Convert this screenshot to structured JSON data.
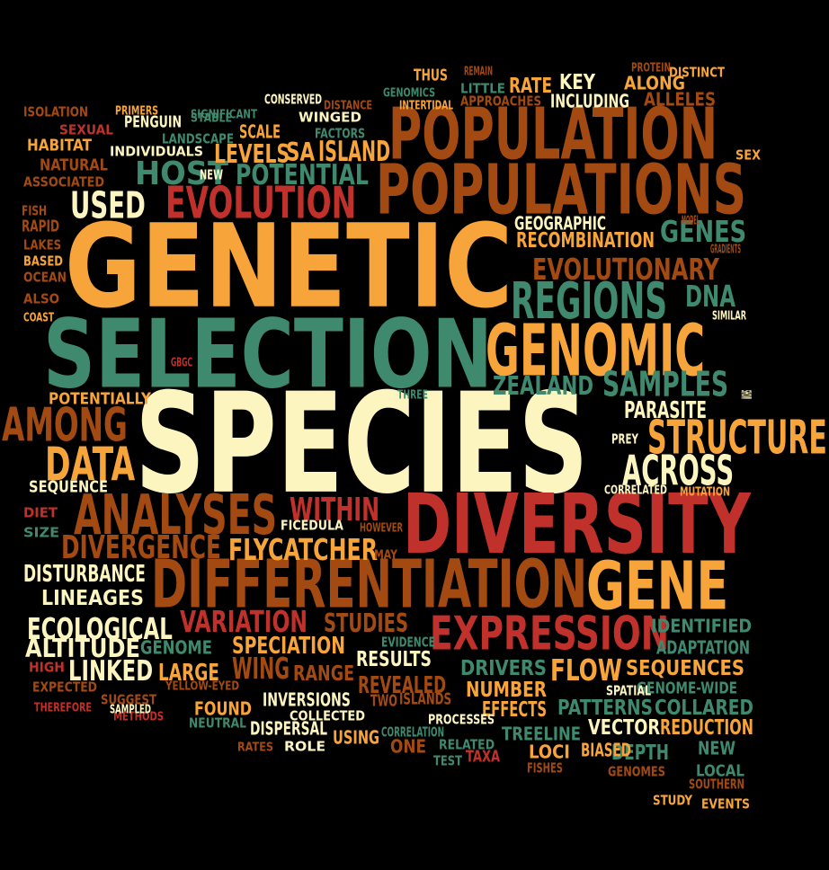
{
  "palette": {
    "cream": "#fdf5c0",
    "orange": "#f7a53a",
    "teal": "#3f8a6e",
    "brown": "#a34a12",
    "red": "#c1312b",
    "background": "#000000"
  },
  "words": [
    {
      "text": "SPECIES",
      "color": "cream"
    },
    {
      "text": "GENETIC",
      "color": "orange"
    },
    {
      "text": "SELECTION",
      "color": "teal"
    },
    {
      "text": "POPULATION",
      "color": "brown"
    },
    {
      "text": "POPULATIONS",
      "color": "brown"
    },
    {
      "text": "DIVERSITY",
      "color": "red"
    },
    {
      "text": "DIFFERENTIATION",
      "color": "brown"
    },
    {
      "text": "GENOMIC",
      "color": "orange"
    },
    {
      "text": "GENE",
      "color": "orange"
    },
    {
      "text": "STRUCTURE",
      "color": "orange"
    },
    {
      "text": "ANALYSES",
      "color": "brown"
    },
    {
      "text": "EXPRESSION",
      "color": "red"
    },
    {
      "text": "AMONG",
      "color": "brown"
    },
    {
      "text": "REGIONS",
      "color": "teal"
    },
    {
      "text": "EVOLUTION",
      "color": "red"
    },
    {
      "text": "ACROSS",
      "color": "cream"
    },
    {
      "text": "DATA",
      "color": "orange"
    },
    {
      "text": "EVOLUTIONARY",
      "color": "brown"
    },
    {
      "text": "SAMPLES",
      "color": "teal"
    },
    {
      "text": "USED",
      "color": "cream"
    },
    {
      "text": "FLYCATCHER",
      "color": "orange"
    },
    {
      "text": "DIVERGENCE",
      "color": "brown"
    },
    {
      "text": "VARIATION",
      "color": "red"
    },
    {
      "text": "WITHIN",
      "color": "red"
    },
    {
      "text": "FLOW",
      "color": "orange"
    },
    {
      "text": "GENES",
      "color": "teal"
    },
    {
      "text": "ZEALAND",
      "color": "teal"
    },
    {
      "text": "DNA",
      "color": "teal"
    },
    {
      "text": "POTENTIAL",
      "color": "teal"
    },
    {
      "text": "HOST",
      "color": "teal"
    },
    {
      "text": "ISLAND",
      "color": "orange"
    },
    {
      "text": "LEVELS",
      "color": "orange"
    },
    {
      "text": "SA",
      "color": "orange"
    },
    {
      "text": "RECOMBINATION",
      "color": "orange"
    },
    {
      "text": "GEOGRAPHIC",
      "color": "cream"
    },
    {
      "text": "PARASITE",
      "color": "cream"
    },
    {
      "text": "ECOLOGICAL",
      "color": "cream"
    },
    {
      "text": "ALTITUDE",
      "color": "cream"
    },
    {
      "text": "LINKED",
      "color": "cream"
    },
    {
      "text": "LINEAGES",
      "color": "cream"
    },
    {
      "text": "DISTURBANCE",
      "color": "cream"
    },
    {
      "text": "SPECIATION",
      "color": "orange"
    },
    {
      "text": "STUDIES",
      "color": "brown"
    },
    {
      "text": "RESULTS",
      "color": "cream"
    },
    {
      "text": "REVEALED",
      "color": "brown"
    },
    {
      "text": "WING",
      "color": "brown"
    },
    {
      "text": "RANGE",
      "color": "brown"
    },
    {
      "text": "LARGE",
      "color": "orange"
    },
    {
      "text": "GENOME",
      "color": "teal"
    },
    {
      "text": "IDENTIFIED",
      "color": "teal"
    },
    {
      "text": "ADAPTATION",
      "color": "teal"
    },
    {
      "text": "SEQUENCES",
      "color": "orange"
    },
    {
      "text": "DRIVERS",
      "color": "teal"
    },
    {
      "text": "NUMBER",
      "color": "orange"
    },
    {
      "text": "EFFECTS",
      "color": "orange"
    },
    {
      "text": "PATTERNS",
      "color": "teal"
    },
    {
      "text": "COLLARED",
      "color": "teal"
    },
    {
      "text": "REDUCTION",
      "color": "orange"
    },
    {
      "text": "VECTOR",
      "color": "cream"
    },
    {
      "text": "DEPTH",
      "color": "teal"
    },
    {
      "text": "NEW",
      "color": "teal"
    },
    {
      "text": "BIASED",
      "color": "orange"
    },
    {
      "text": "LOCI",
      "color": "orange"
    },
    {
      "text": "TREELINE",
      "color": "teal"
    },
    {
      "text": "ONE",
      "color": "brown"
    },
    {
      "text": "USING",
      "color": "orange"
    },
    {
      "text": "FOUND",
      "color": "orange"
    },
    {
      "text": "INVERSIONS",
      "color": "cream"
    },
    {
      "text": "DISPERSAL",
      "color": "cream"
    },
    {
      "text": "ROLE",
      "color": "cream"
    },
    {
      "text": "COLLECTED",
      "color": "cream"
    },
    {
      "text": "NEUTRAL",
      "color": "teal"
    },
    {
      "text": "ISLANDS",
      "color": "brown"
    },
    {
      "text": "TWO",
      "color": "brown"
    },
    {
      "text": "TAXA",
      "color": "red"
    },
    {
      "text": "RELATED",
      "color": "teal"
    },
    {
      "text": "GENOME-WIDE",
      "color": "teal"
    },
    {
      "text": "SPATIAL",
      "color": "cream"
    },
    {
      "text": "PROCESSES",
      "color": "cream"
    },
    {
      "text": "CORRELATION",
      "color": "teal"
    },
    {
      "text": "TEST",
      "color": "teal"
    },
    {
      "text": "FISHES",
      "color": "brown"
    },
    {
      "text": "GENOMES",
      "color": "brown"
    },
    {
      "text": "LOCAL",
      "color": "teal"
    },
    {
      "text": "SOUTHERN",
      "color": "brown"
    },
    {
      "text": "STUDY",
      "color": "orange"
    },
    {
      "text": "EVENTS",
      "color": "orange"
    },
    {
      "text": "SEQUENCE",
      "color": "cream"
    },
    {
      "text": "POTENTIALLY",
      "color": "orange"
    },
    {
      "text": "DIET",
      "color": "red"
    },
    {
      "text": "SIZE",
      "color": "teal"
    },
    {
      "text": "FICEDULA",
      "color": "cream"
    },
    {
      "text": "HOWEVER",
      "color": "brown"
    },
    {
      "text": "MAY",
      "color": "brown"
    },
    {
      "text": "PREY",
      "color": "cream"
    },
    {
      "text": "CORRELATED",
      "color": "cream"
    },
    {
      "text": "MUTATION",
      "color": "orange"
    },
    {
      "text": "SHOW",
      "color": "cream"
    },
    {
      "text": "THREE",
      "color": "teal"
    },
    {
      "text": "GBGC",
      "color": "red"
    },
    {
      "text": "SIMILAR",
      "color": "cream"
    },
    {
      "text": "GRADIENTS",
      "color": "brown"
    },
    {
      "text": "MODEL",
      "color": "brown"
    },
    {
      "text": "SEX",
      "color": "orange"
    },
    {
      "text": "PROTEIN",
      "color": "brown"
    },
    {
      "text": "DISTINCT",
      "color": "orange"
    },
    {
      "text": "REMAIN",
      "color": "brown"
    },
    {
      "text": "THUS",
      "color": "orange"
    },
    {
      "text": "RATE",
      "color": "orange"
    },
    {
      "text": "KEY",
      "color": "cream"
    },
    {
      "text": "ALONG",
      "color": "orange"
    },
    {
      "text": "ALLELES",
      "color": "brown"
    },
    {
      "text": "LITTLE",
      "color": "teal"
    },
    {
      "text": "APPROACHES",
      "color": "brown"
    },
    {
      "text": "INCLUDING",
      "color": "cream"
    },
    {
      "text": "GENOMICS",
      "color": "teal"
    },
    {
      "text": "INTERTIDAL",
      "color": "orange"
    },
    {
      "text": "DISTANCE",
      "color": "brown"
    },
    {
      "text": "CONSERVED",
      "color": "cream"
    },
    {
      "text": "WINGED",
      "color": "cream"
    },
    {
      "text": "FACTORS",
      "color": "teal"
    },
    {
      "text": "SCALE",
      "color": "orange"
    },
    {
      "text": "STABLE",
      "color": "teal"
    },
    {
      "text": "SIGNIFICANT",
      "color": "teal"
    },
    {
      "text": "LANDSCAPE",
      "color": "teal"
    },
    {
      "text": "PENGUIN",
      "color": "cream"
    },
    {
      "text": "INDIVIDUALS",
      "color": "cream"
    },
    {
      "text": "NEW",
      "color": "cream"
    },
    {
      "text": "PRIMERS",
      "color": "orange"
    },
    {
      "text": "ISOLATION",
      "color": "brown"
    },
    {
      "text": "SEXUAL",
      "color": "red"
    },
    {
      "text": "HABITAT",
      "color": "orange"
    },
    {
      "text": "NATURAL",
      "color": "brown"
    },
    {
      "text": "ASSOCIATED",
      "color": "brown"
    },
    {
      "text": "FISH",
      "color": "brown"
    },
    {
      "text": "RAPID",
      "color": "brown"
    },
    {
      "text": "LAKES",
      "color": "brown"
    },
    {
      "text": "BASED",
      "color": "orange"
    },
    {
      "text": "OCEAN",
      "color": "brown"
    },
    {
      "text": "ALSO",
      "color": "brown"
    },
    {
      "text": "COAST",
      "color": "orange"
    },
    {
      "text": "HIGH",
      "color": "red"
    },
    {
      "text": "EXPECTED",
      "color": "brown"
    },
    {
      "text": "THEREFORE",
      "color": "red"
    },
    {
      "text": "SUGGEST",
      "color": "brown"
    },
    {
      "text": "METHODS",
      "color": "red"
    },
    {
      "text": "SAMPLED",
      "color": "cream"
    },
    {
      "text": "YELLOW-EYED",
      "color": "brown"
    },
    {
      "text": "EVIDENCE",
      "color": "teal"
    },
    {
      "text": "RATES",
      "color": "brown"
    }
  ]
}
